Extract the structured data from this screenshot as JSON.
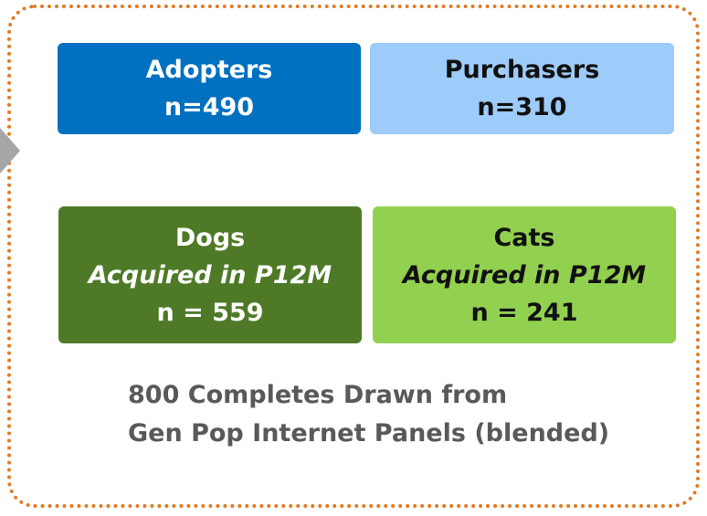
{
  "boxes": [
    {
      "title": "Adopters",
      "lines": [
        "n=490"
      ]
    },
    {
      "title": "Purchasers",
      "lines": [
        "n=310"
      ]
    },
    {
      "title": "Dogs",
      "lines": [
        "Acquired in P12M",
        "n = 559"
      ]
    },
    {
      "title": "Cats",
      "lines": [
        "Acquired in P12M",
        "n = 241"
      ]
    }
  ],
  "footer": [
    "800 Completes Drawn from",
    "Gen Pop Internet Panels (blended)"
  ]
}
